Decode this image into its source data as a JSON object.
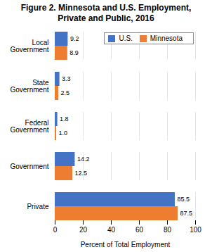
{
  "chart_data": {
    "type": "bar",
    "orientation": "horizontal",
    "title": "Figure 2. Minnesota and U.S. Employment,\nPrivate and Public, 2016",
    "categories": [
      "Private",
      "Government",
      "Federal\nGovernment",
      "State\nGovernment",
      "Local\nGovernment"
    ],
    "series": [
      {
        "name": "U.S.",
        "color": "#4472C4",
        "values": [
          85.5,
          14.2,
          1.8,
          3.3,
          9.2
        ],
        "value_labels": [
          "85.5",
          "14.2",
          "1.8",
          "3.3",
          "9.2"
        ]
      },
      {
        "name": "Minnesota",
        "color": "#ED7D31",
        "values": [
          87.5,
          12.5,
          1.0,
          2.5,
          8.9
        ],
        "value_labels": [
          "87.5",
          "12.5",
          "1.0",
          "2.5",
          "8.9"
        ]
      }
    ],
    "xlabel": "Percent of Total Employment",
    "xlim": [
      0,
      100
    ],
    "xticks": [
      0,
      20,
      40,
      60,
      80,
      100
    ],
    "grid": true,
    "legend": "upper right",
    "data_labels": true
  }
}
